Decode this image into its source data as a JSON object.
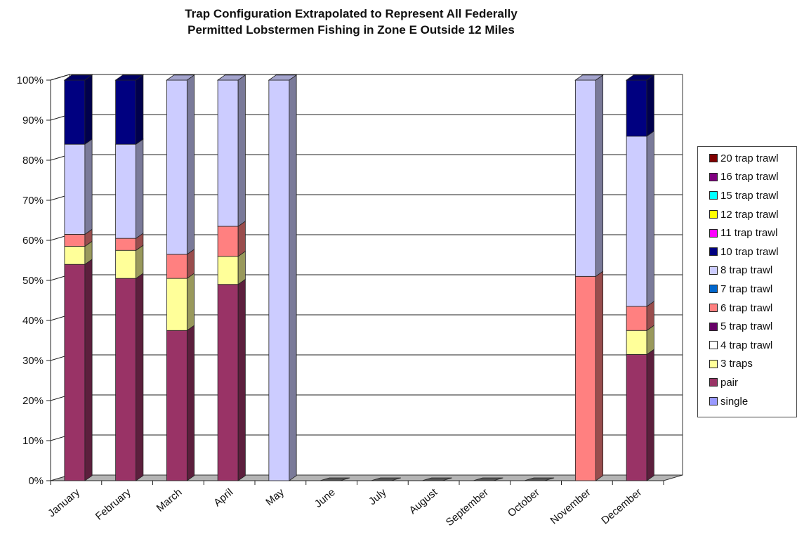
{
  "chart_data": {
    "type": "bar",
    "stacked": true,
    "three_d": true,
    "title_line1": "Trap Configuration Extrapolated to Represent All Federally",
    "title_line2": "Permitted Lobstermen Fishing in Zone E Outside 12 Miles",
    "xlabel": "",
    "ylabel": "",
    "ylim": [
      0,
      100
    ],
    "y_ticks": [
      "0%",
      "10%",
      "20%",
      "30%",
      "40%",
      "50%",
      "60%",
      "70%",
      "80%",
      "90%",
      "100%"
    ],
    "grid": true,
    "legend_position": "right",
    "categories": [
      "January",
      "February",
      "March",
      "April",
      "May",
      "June",
      "July",
      "August",
      "September",
      "October",
      "November",
      "December"
    ],
    "series": [
      {
        "name": "single",
        "color": "#9999FF",
        "values": [
          0,
          0,
          0,
          0,
          0,
          0,
          0,
          0,
          0,
          0,
          0,
          0
        ]
      },
      {
        "name": "pair",
        "color": "#993366",
        "values": [
          54,
          50.5,
          37.5,
          49,
          0,
          0,
          0,
          0,
          0,
          0,
          0,
          31.5
        ]
      },
      {
        "name": "3 traps",
        "color": "#FFFF99",
        "values": [
          4.5,
          7,
          13,
          7,
          0,
          0,
          0,
          0,
          0,
          0,
          0,
          6
        ]
      },
      {
        "name": "4 trap trawl",
        "color": "#FFFFFF",
        "values": [
          0,
          0,
          0,
          0,
          0,
          0,
          0,
          0,
          0,
          0,
          0,
          0
        ]
      },
      {
        "name": "5 trap trawl",
        "color": "#660066",
        "values": [
          0,
          0,
          0,
          0,
          0,
          0,
          0,
          0,
          0,
          0,
          0,
          0
        ]
      },
      {
        "name": "6 trap trawl",
        "color": "#FF8080",
        "values": [
          3,
          3,
          6,
          7.5,
          0,
          0,
          0,
          0,
          0,
          0,
          51,
          6
        ]
      },
      {
        "name": "7 trap trawl",
        "color": "#0066CC",
        "values": [
          0,
          0,
          0,
          0,
          0,
          0,
          0,
          0,
          0,
          0,
          0,
          0
        ]
      },
      {
        "name": "8 trap trawl",
        "color": "#CCCCFF",
        "values": [
          22.5,
          23.5,
          43.5,
          36.5,
          100,
          0,
          0,
          0,
          0,
          0,
          49,
          42.5
        ]
      },
      {
        "name": "10 trap trawl",
        "color": "#000080",
        "values": [
          16,
          16,
          0,
          0,
          0,
          0,
          0,
          0,
          0,
          0,
          0,
          14
        ]
      },
      {
        "name": "11 trap trawl",
        "color": "#FF00FF",
        "values": [
          0,
          0,
          0,
          0,
          0,
          0,
          0,
          0,
          0,
          0,
          0,
          0
        ]
      },
      {
        "name": "12 trap trawl",
        "color": "#FFFF00",
        "values": [
          0,
          0,
          0,
          0,
          0,
          0,
          0,
          0,
          0,
          0,
          0,
          0
        ]
      },
      {
        "name": "15 trap trawl",
        "color": "#00FFFF",
        "values": [
          0,
          0,
          0,
          0,
          0,
          0,
          0,
          0,
          0,
          0,
          0,
          0
        ]
      },
      {
        "name": "16 trap trawl",
        "color": "#800080",
        "values": [
          0,
          0,
          0,
          0,
          0,
          0,
          0,
          0,
          0,
          0,
          0,
          0
        ]
      },
      {
        "name": "20 trap trawl",
        "color": "#800000",
        "values": [
          0,
          0,
          0,
          0,
          0,
          0,
          0,
          0,
          0,
          0,
          0,
          0
        ]
      }
    ]
  }
}
